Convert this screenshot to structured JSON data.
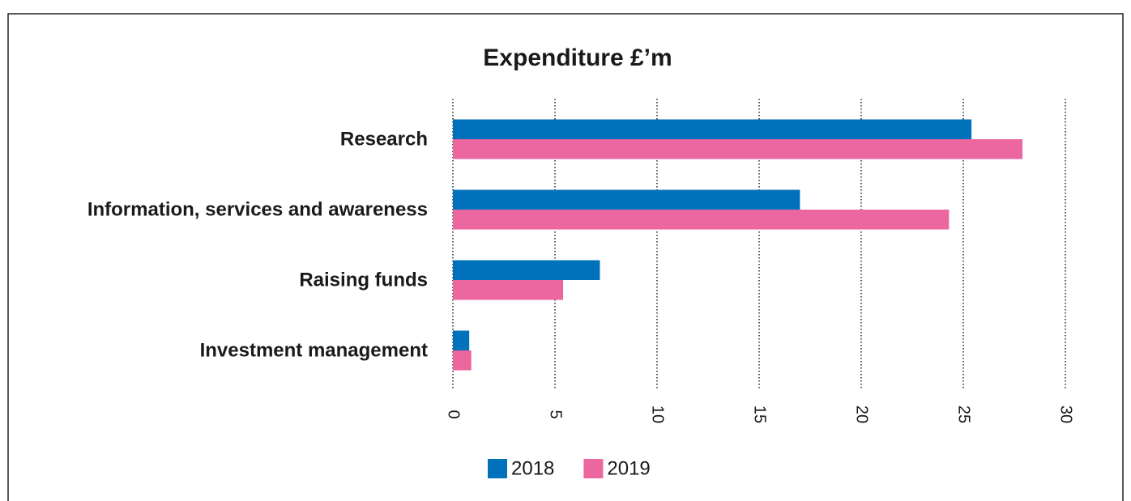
{
  "chart_data": {
    "type": "bar",
    "orientation": "horizontal",
    "title": "Expenditure £’m",
    "categories": [
      "Research",
      "Information, services and awareness",
      "Raising funds",
      "Investment management"
    ],
    "series": [
      {
        "name": "2018",
        "color": "#0072bc",
        "values": [
          25.4,
          17.0,
          7.2,
          0.8
        ]
      },
      {
        "name": "2019",
        "color": "#ec66a0",
        "values": [
          27.9,
          24.3,
          5.4,
          0.9
        ]
      }
    ],
    "xlim": [
      0,
      30
    ],
    "xticks": [
      0,
      5,
      10,
      15,
      20,
      25,
      30
    ],
    "grid": true,
    "legend": "bottom"
  }
}
